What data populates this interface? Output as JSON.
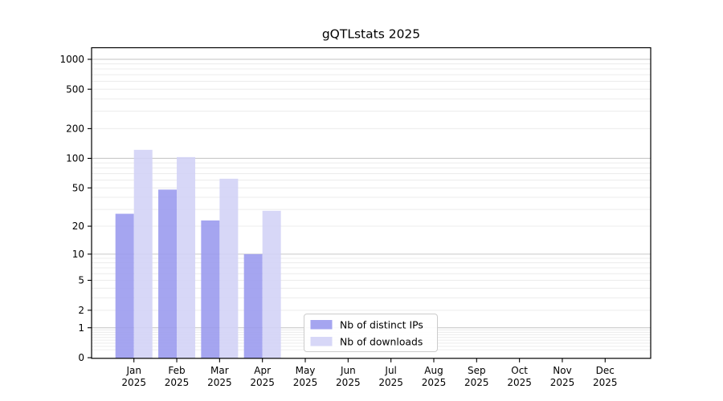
{
  "title": "gQTLstats 2025",
  "chart_data": {
    "type": "bar",
    "title": "gQTLstats 2025",
    "year_label": "2025",
    "categories": [
      "Jan",
      "Feb",
      "Mar",
      "Apr",
      "May",
      "Jun",
      "Jul",
      "Aug",
      "Sep",
      "Oct",
      "Nov",
      "Dec"
    ],
    "series": [
      {
        "name": "Nb of distinct IPs",
        "color": "#9898ee",
        "values": [
          27,
          48,
          23,
          10,
          0,
          0,
          0,
          0,
          0,
          0,
          0,
          0
        ]
      },
      {
        "name": "Nb of downloads",
        "color": "#d2d2f6",
        "values": [
          122,
          103,
          62,
          29,
          0,
          0,
          0,
          0,
          0,
          0,
          0,
          0
        ]
      }
    ],
    "yticks": [
      0,
      1,
      2,
      5,
      10,
      20,
      50,
      100,
      200,
      500,
      1000
    ],
    "yscale": "log1p",
    "ylim": [
      0,
      1300
    ],
    "xlabel": "",
    "ylabel": "",
    "grid": {
      "major_color": "#c9c9c9",
      "minor_color": "#ececec",
      "minor_on": true
    },
    "axis_color": "#000000",
    "legend": {
      "position": "lower center",
      "border_color": "#cccccc",
      "background": "#ffffff"
    }
  }
}
